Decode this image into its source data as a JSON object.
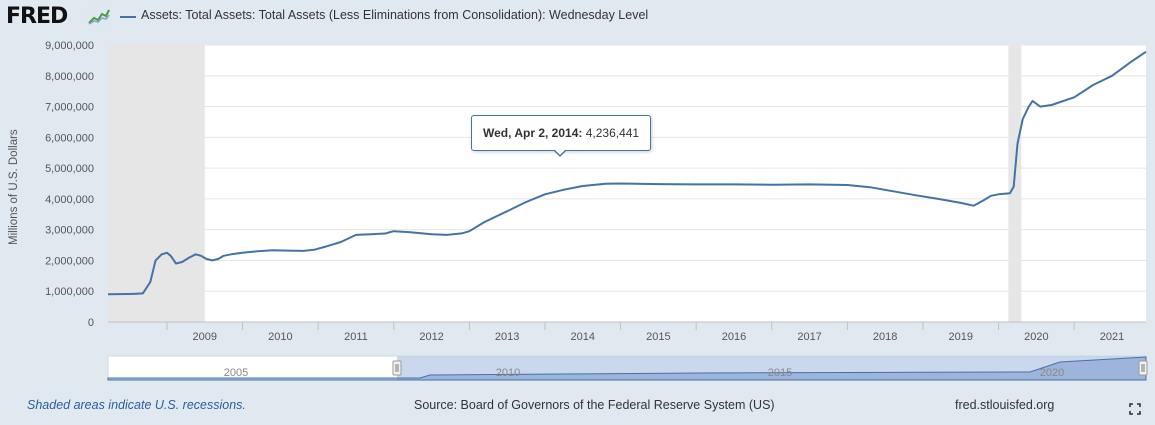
{
  "logo": {
    "text": "FRED",
    "icon": "fred-chart-icon"
  },
  "legend": {
    "series_name": "Assets: Total Assets: Total Assets (Less Eliminations from Consolidation): Wednesday Level",
    "color": "#4572a7"
  },
  "tooltip": {
    "date": "Wed, Apr 2, 2014:",
    "value": "4,236,441"
  },
  "navigator": {
    "labels": [
      "2005",
      "2010",
      "2015",
      "2020"
    ]
  },
  "footer": {
    "recession_note": "Shaded areas indicate U.S. recessions.",
    "source": "Source: Board of Governors of the Federal Reserve System (US)",
    "url": "fred.stlouisfed.org",
    "fullscreen_icon": "fullscreen-icon"
  },
  "chart_data": {
    "type": "line",
    "ylabel": "Millions of U.S. Dollars",
    "xlabel": "",
    "xlim": [
      2008.22,
      2021.95
    ],
    "ylim": [
      0,
      9000000
    ],
    "y_ticks": [
      0,
      1000000,
      2000000,
      3000000,
      4000000,
      5000000,
      6000000,
      7000000,
      8000000,
      9000000
    ],
    "y_tick_labels": [
      "0",
      "1,000,000",
      "2,000,000",
      "3,000,000",
      "4,000,000",
      "5,000,000",
      "6,000,000",
      "7,000,000",
      "8,000,000",
      "9,000,000"
    ],
    "x_ticks": [
      2009,
      2010,
      2011,
      2012,
      2013,
      2014,
      2015,
      2016,
      2017,
      2018,
      2019,
      2020,
      2021
    ],
    "x_tick_labels": [
      "2009",
      "2010",
      "2011",
      "2012",
      "2013",
      "2014",
      "2015",
      "2016",
      "2017",
      "2018",
      "2019",
      "2020",
      "2021"
    ],
    "grid": true,
    "legend": "top-left",
    "recessions": [
      [
        2008.22,
        2009.5
      ],
      [
        2020.13,
        2020.3
      ]
    ],
    "series": [
      {
        "name": "Assets: Total Assets: Total Assets (Less Eliminations from Consolidation): Wednesday Level",
        "color": "#4572a7",
        "x": [
          2008.22,
          2008.5,
          2008.6,
          2008.68,
          2008.78,
          2008.85,
          2008.93,
          2009.0,
          2009.05,
          2009.12,
          2009.2,
          2009.3,
          2009.38,
          2009.45,
          2009.52,
          2009.6,
          2009.68,
          2009.75,
          2009.85,
          2010.0,
          2010.2,
          2010.4,
          2010.6,
          2010.8,
          2010.95,
          2011.1,
          2011.3,
          2011.5,
          2011.7,
          2011.9,
          2011.95,
          2012.0,
          2012.2,
          2012.5,
          2012.7,
          2012.9,
          2013.0,
          2013.2,
          2013.5,
          2013.75,
          2014.0,
          2014.25,
          2014.5,
          2014.8,
          2015.0,
          2015.5,
          2016.0,
          2016.5,
          2017.0,
          2017.5,
          2018.0,
          2018.3,
          2018.6,
          2018.9,
          2019.2,
          2019.5,
          2019.67,
          2019.8,
          2019.9,
          2020.0,
          2020.15,
          2020.2,
          2020.25,
          2020.32,
          2020.4,
          2020.45,
          2020.55,
          2020.7,
          2021.0,
          2021.25,
          2021.5,
          2021.75,
          2021.95
        ],
        "values": [
          900000,
          910000,
          920000,
          930000,
          1300000,
          2000000,
          2200000,
          2250000,
          2150000,
          1900000,
          1950000,
          2100000,
          2200000,
          2150000,
          2050000,
          2000000,
          2050000,
          2150000,
          2200000,
          2250000,
          2300000,
          2330000,
          2320000,
          2310000,
          2350000,
          2450000,
          2600000,
          2830000,
          2850000,
          2880000,
          2920000,
          2950000,
          2920000,
          2850000,
          2830000,
          2880000,
          2950000,
          3250000,
          3600000,
          3900000,
          4150000,
          4300000,
          4420000,
          4490000,
          4500000,
          4480000,
          4470000,
          4470000,
          4460000,
          4470000,
          4450000,
          4380000,
          4250000,
          4120000,
          4000000,
          3870000,
          3780000,
          3950000,
          4100000,
          4150000,
          4180000,
          4400000,
          5800000,
          6600000,
          7000000,
          7180000,
          7000000,
          7050000,
          7300000,
          7700000,
          8000000,
          8450000,
          8780000
        ]
      }
    ]
  }
}
